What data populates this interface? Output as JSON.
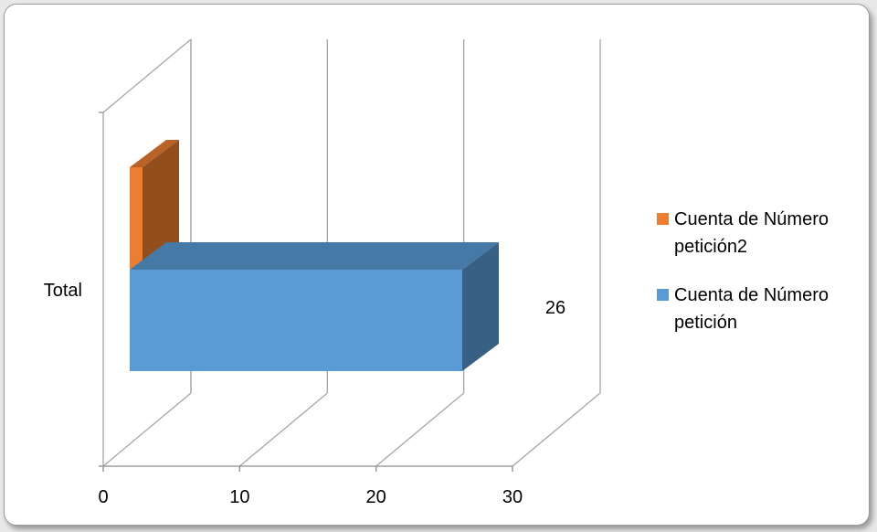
{
  "chart_data": {
    "type": "bar",
    "orientation": "horizontal",
    "style": "3d-clustered",
    "categories": [
      "Total"
    ],
    "series": [
      {
        "name": "Cuenta de Número petición2",
        "values": [
          1
        ],
        "color": "#ED7D31"
      },
      {
        "name": "Cuenta de Número petición",
        "values": [
          26
        ],
        "color": "#5B9BD5"
      }
    ],
    "data_labels": [
      "",
      "26"
    ],
    "xlim": [
      0,
      30
    ],
    "xticks": [
      0,
      10,
      20,
      30
    ],
    "xtick_labels": [
      "0",
      "10",
      "20",
      "30"
    ],
    "title": "",
    "xlabel": "",
    "ylabel": "",
    "grid": "vertical",
    "legend_position": "right",
    "legend_lines": [
      [
        "Cuenta de Número",
        "petición2"
      ],
      [
        "Cuenta de Número",
        "petición"
      ]
    ]
  }
}
